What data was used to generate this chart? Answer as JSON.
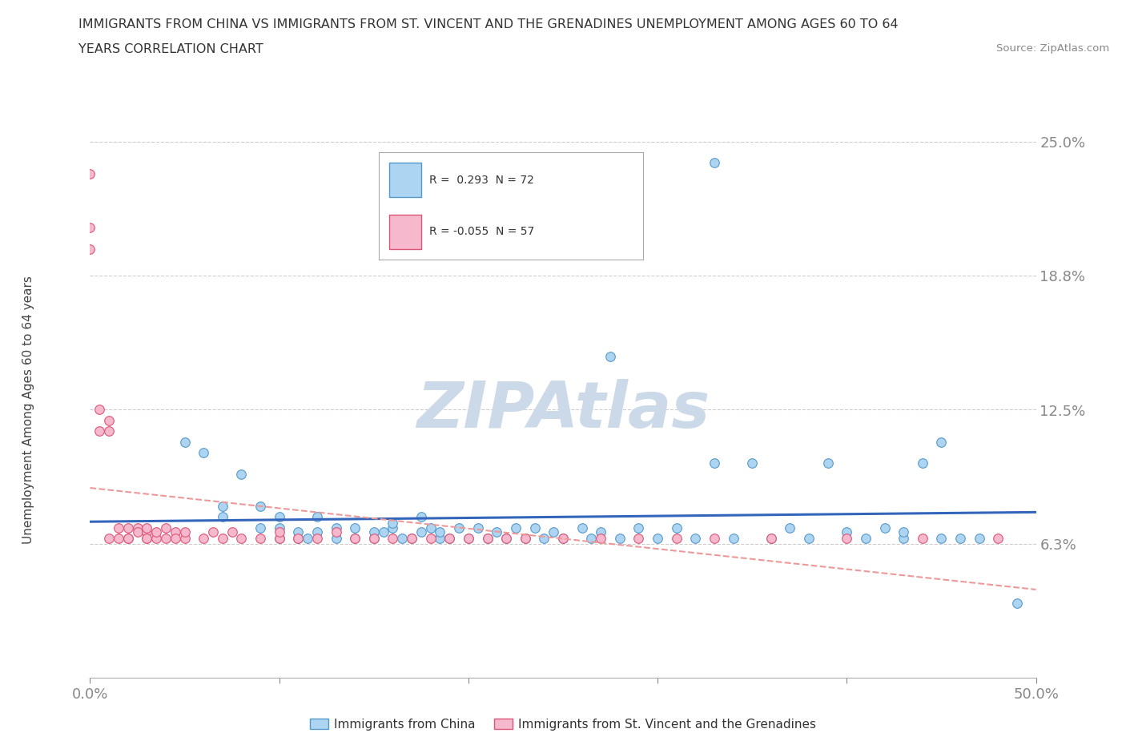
{
  "title_line1": "IMMIGRANTS FROM CHINA VS IMMIGRANTS FROM ST. VINCENT AND THE GRENADINES UNEMPLOYMENT AMONG AGES 60 TO 64",
  "title_line2": "YEARS CORRELATION CHART",
  "source_text": "Source: ZipAtlas.com",
  "ylabel": "Unemployment Among Ages 60 to 64 years",
  "xlim": [
    0.0,
    0.5
  ],
  "ylim": [
    0.0,
    0.25
  ],
  "grid_color": "#cccccc",
  "background_color": "#ffffff",
  "china_color": "#add4f0",
  "china_edge_color": "#5599cc",
  "stvg_color": "#f5b8cc",
  "stvg_edge_color": "#dd5577",
  "china_R": 0.293,
  "china_N": 72,
  "stvg_R": -0.055,
  "stvg_N": 57,
  "trend_china_color": "#3366bb",
  "trend_stvg_color": "#ee9999",
  "watermark_color": "#ccd9e8",
  "china_scatter_x": [
    0.33,
    0.05,
    0.06,
    0.07,
    0.07,
    0.08,
    0.09,
    0.09,
    0.1,
    0.1,
    0.1,
    0.11,
    0.11,
    0.115,
    0.12,
    0.12,
    0.13,
    0.13,
    0.14,
    0.14,
    0.15,
    0.15,
    0.155,
    0.16,
    0.16,
    0.165,
    0.17,
    0.175,
    0.175,
    0.18,
    0.185,
    0.185,
    0.19,
    0.195,
    0.2,
    0.205,
    0.21,
    0.215,
    0.22,
    0.225,
    0.23,
    0.235,
    0.24,
    0.245,
    0.25,
    0.26,
    0.265,
    0.27,
    0.275,
    0.28,
    0.29,
    0.3,
    0.31,
    0.32,
    0.33,
    0.34,
    0.35,
    0.36,
    0.37,
    0.38,
    0.39,
    0.4,
    0.41,
    0.42,
    0.43,
    0.43,
    0.44,
    0.45,
    0.45,
    0.46,
    0.47,
    0.49
  ],
  "china_scatter_y": [
    0.24,
    0.11,
    0.105,
    0.075,
    0.08,
    0.095,
    0.07,
    0.08,
    0.065,
    0.07,
    0.075,
    0.065,
    0.068,
    0.065,
    0.068,
    0.075,
    0.065,
    0.07,
    0.065,
    0.07,
    0.065,
    0.068,
    0.068,
    0.07,
    0.072,
    0.065,
    0.065,
    0.068,
    0.075,
    0.07,
    0.065,
    0.068,
    0.065,
    0.07,
    0.065,
    0.07,
    0.065,
    0.068,
    0.065,
    0.07,
    0.065,
    0.07,
    0.065,
    0.068,
    0.065,
    0.07,
    0.065,
    0.068,
    0.15,
    0.065,
    0.07,
    0.065,
    0.07,
    0.065,
    0.1,
    0.065,
    0.1,
    0.065,
    0.07,
    0.065,
    0.1,
    0.068,
    0.065,
    0.07,
    0.065,
    0.068,
    0.1,
    0.065,
    0.11,
    0.065,
    0.065,
    0.035
  ],
  "stvg_scatter_x": [
    0.0,
    0.0,
    0.0,
    0.005,
    0.005,
    0.01,
    0.01,
    0.01,
    0.015,
    0.015,
    0.02,
    0.02,
    0.02,
    0.025,
    0.025,
    0.03,
    0.03,
    0.03,
    0.03,
    0.035,
    0.035,
    0.04,
    0.04,
    0.045,
    0.045,
    0.05,
    0.05,
    0.06,
    0.065,
    0.07,
    0.075,
    0.08,
    0.09,
    0.1,
    0.1,
    0.11,
    0.12,
    0.13,
    0.14,
    0.15,
    0.16,
    0.17,
    0.18,
    0.19,
    0.2,
    0.21,
    0.22,
    0.23,
    0.25,
    0.27,
    0.29,
    0.31,
    0.33,
    0.36,
    0.4,
    0.44,
    0.48
  ],
  "stvg_scatter_y": [
    0.235,
    0.2,
    0.21,
    0.125,
    0.115,
    0.12,
    0.115,
    0.065,
    0.065,
    0.07,
    0.065,
    0.07,
    0.065,
    0.07,
    0.068,
    0.065,
    0.068,
    0.065,
    0.07,
    0.065,
    0.068,
    0.07,
    0.065,
    0.068,
    0.065,
    0.065,
    0.068,
    0.065,
    0.068,
    0.065,
    0.068,
    0.065,
    0.065,
    0.065,
    0.068,
    0.065,
    0.065,
    0.068,
    0.065,
    0.065,
    0.065,
    0.065,
    0.065,
    0.065,
    0.065,
    0.065,
    0.065,
    0.065,
    0.065,
    0.065,
    0.065,
    0.065,
    0.065,
    0.065,
    0.065,
    0.065,
    0.065
  ],
  "legend_R_china_text": "R =  0.293  N = 72",
  "legend_R_stvg_text": "R = -0.055  N = 57"
}
